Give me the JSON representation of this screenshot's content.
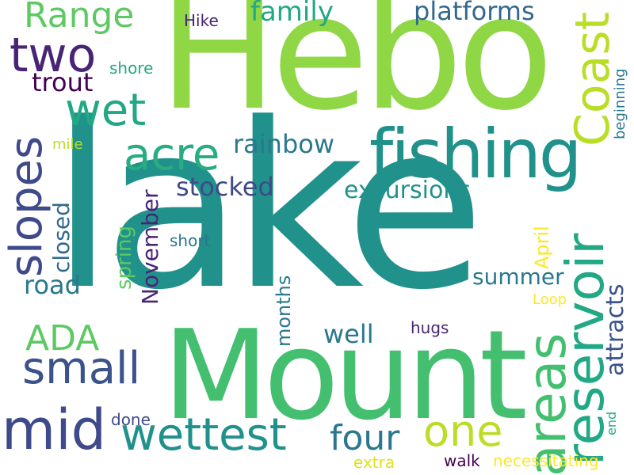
{
  "words": {
    "lake": "lake",
    "hebo": "Hebo",
    "mount": "Mount",
    "fishing": "fishing",
    "reservoir": "reservoir",
    "coast": "Coast",
    "areas": "areas",
    "mid": "mid",
    "wettest": "wettest",
    "small": "small",
    "slopes": "slopes",
    "two": "two",
    "wet": "wet",
    "acre": "acre",
    "one": "one",
    "range": "Range",
    "four": "four",
    "ada": "ADA",
    "trout": "trout",
    "family": "family",
    "platforms": "platforms",
    "rainbow": "rainbow",
    "stocked": "stocked",
    "excursions": "excursions",
    "attracts": "attracts",
    "november": "November",
    "months": "months",
    "closed": "closed",
    "spring": "spring",
    "road": "road",
    "well": "well",
    "summer": "summer",
    "april": "April",
    "beginning": "beginning",
    "hike": "Hike",
    "shore": "shore",
    "mile": "mile",
    "short": "short",
    "hugs": "hugs",
    "loop": "Loop",
    "done": "done",
    "end": "end",
    "extra": "extra",
    "walk": "walk",
    "necessitating": "necessitating"
  }
}
